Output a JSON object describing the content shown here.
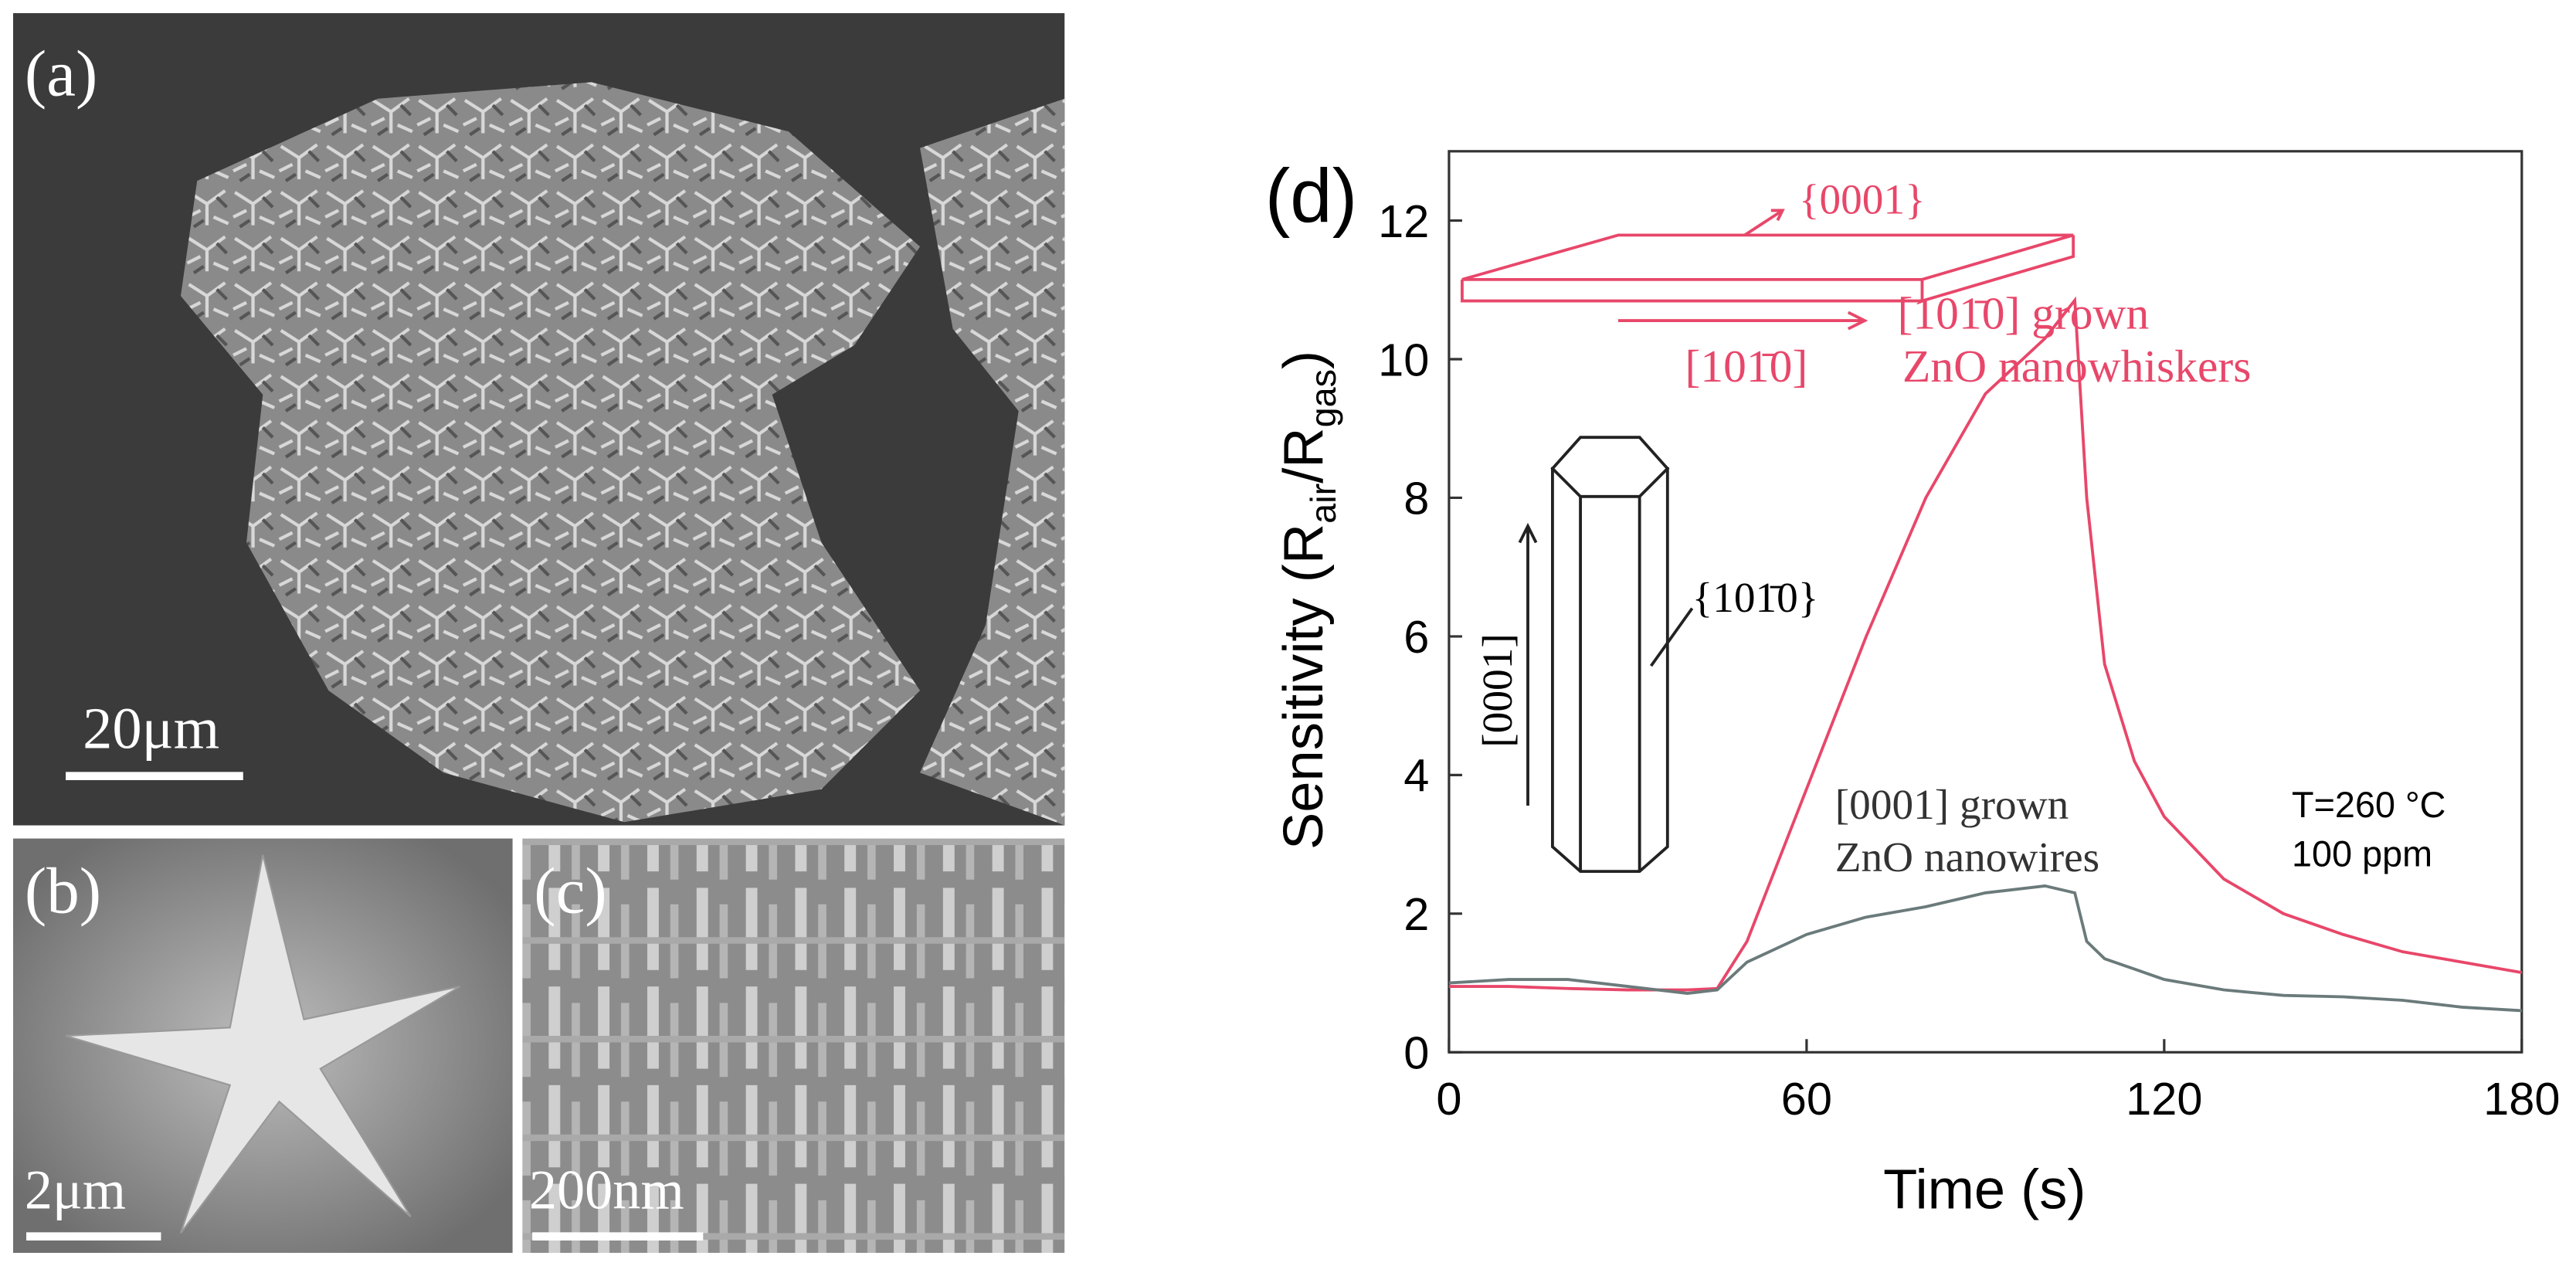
{
  "panels": {
    "a": {
      "label": "(a)",
      "scale": "20μm"
    },
    "b": {
      "label": "(b)",
      "scale": "2μm"
    },
    "c": {
      "label": "(c)",
      "scale": "200nm"
    }
  },
  "chart_data": {
    "type": "line",
    "panel_label": "(d)",
    "x_label": "Time (s)",
    "y_label_parts": [
      "Sensitivity (R",
      "air",
      "/R",
      "gas",
      ")"
    ],
    "x": [
      0,
      10,
      20,
      30,
      40,
      45,
      50,
      60,
      70,
      80,
      90,
      100,
      105,
      107,
      110,
      115,
      120,
      130,
      140,
      150,
      160,
      170,
      180
    ],
    "series": [
      {
        "name": "[101̄0] grown ZnO nanowhiskers",
        "color": "#e8476a",
        "values": [
          0.95,
          0.95,
          0.92,
          0.9,
          0.9,
          0.92,
          1.6,
          3.8,
          6.0,
          8.0,
          9.5,
          10.3,
          10.85,
          8.0,
          5.6,
          4.2,
          3.4,
          2.5,
          2.0,
          1.7,
          1.45,
          1.3,
          1.15
        ]
      },
      {
        "name": "[0001] grown ZnO nanowires",
        "color": "#6b7a7a",
        "values": [
          1.0,
          1.05,
          1.05,
          0.95,
          0.85,
          0.9,
          1.3,
          1.7,
          1.95,
          2.1,
          2.3,
          2.4,
          2.3,
          1.6,
          1.35,
          1.2,
          1.05,
          0.9,
          0.82,
          0.8,
          0.75,
          0.65,
          0.6
        ]
      }
    ],
    "xlim": [
      0,
      180
    ],
    "xticks": [
      0,
      60,
      120,
      180
    ],
    "ylim": [
      0,
      13
    ],
    "yticks": [
      0,
      2,
      4,
      6,
      8,
      10,
      12
    ],
    "annotations": {
      "plate_face": "{0001}",
      "plate_dir": "[101̄0]",
      "whisker_1": "[101̄0] grown",
      "whisker_2": "ZnO nanowhiskers",
      "prism_face": "{101̄0}",
      "prism_dir": "[0001]",
      "wire_1": "[0001] grown",
      "wire_2": "ZnO nanowires",
      "temp": "T=260 °C",
      "conc": "100 ppm"
    }
  }
}
